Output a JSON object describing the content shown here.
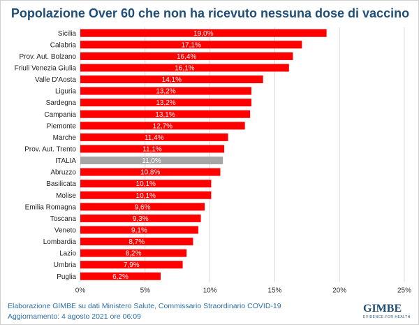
{
  "chart_data": {
    "type": "bar",
    "orientation": "horizontal",
    "title": "Popolazione Over 60 che non ha ricevuto nessuna dose di vaccino",
    "categories": [
      "Sicilia",
      "Calabria",
      "Prov. Aut. Bolzano",
      "Friuli Venezia Giulia",
      "Valle D'Aosta",
      "Liguria",
      "Sardegna",
      "Campania",
      "Piemonte",
      "Marche",
      "Prov. Aut. Trento",
      "ITALIA",
      "Abruzzo",
      "Basilicata",
      "Molise",
      "Emilia Romagna",
      "Toscana",
      "Veneto",
      "Lombardia",
      "Lazio",
      "Umbria",
      "Puglia"
    ],
    "values": [
      19.0,
      17.1,
      16.4,
      16.1,
      14.1,
      13.2,
      13.2,
      13.1,
      12.7,
      11.4,
      11.1,
      11.0,
      10.8,
      10.1,
      10.1,
      9.6,
      9.3,
      9.1,
      8.7,
      8.2,
      7.9,
      6.2
    ],
    "data_labels": [
      "19,0%",
      "17,1%",
      "16,4%",
      "16,1%",
      "14,1%",
      "13,2%",
      "13,2%",
      "13,1%",
      "12,7%",
      "11,4%",
      "11,1%",
      "11,0%",
      "10,8%",
      "10,1%",
      "10,1%",
      "9,6%",
      "9,3%",
      "9,1%",
      "8,7%",
      "8,2%",
      "7,9%",
      "6,2%"
    ],
    "xlim": [
      0,
      25
    ],
    "x_ticks": [
      "0%",
      "5%",
      "10%",
      "15%",
      "20%",
      "25%"
    ],
    "grid": true,
    "colors": {
      "bar": "#ff0000",
      "highlight": "#a6a6a6",
      "highlight_category": "ITALIA",
      "title": "#1f4e79",
      "footer": "#2e6fa7"
    }
  },
  "footer": {
    "source": "Elaborazione GIMBE su dati Ministero Salute, Commissario Straordinario COVID-19",
    "updated": "Aggiornamento: 4 agosto 2021 ore 06:09"
  },
  "logo": {
    "name": "GIMBE",
    "tagline": "EVIDENCE FOR HEALTH"
  }
}
